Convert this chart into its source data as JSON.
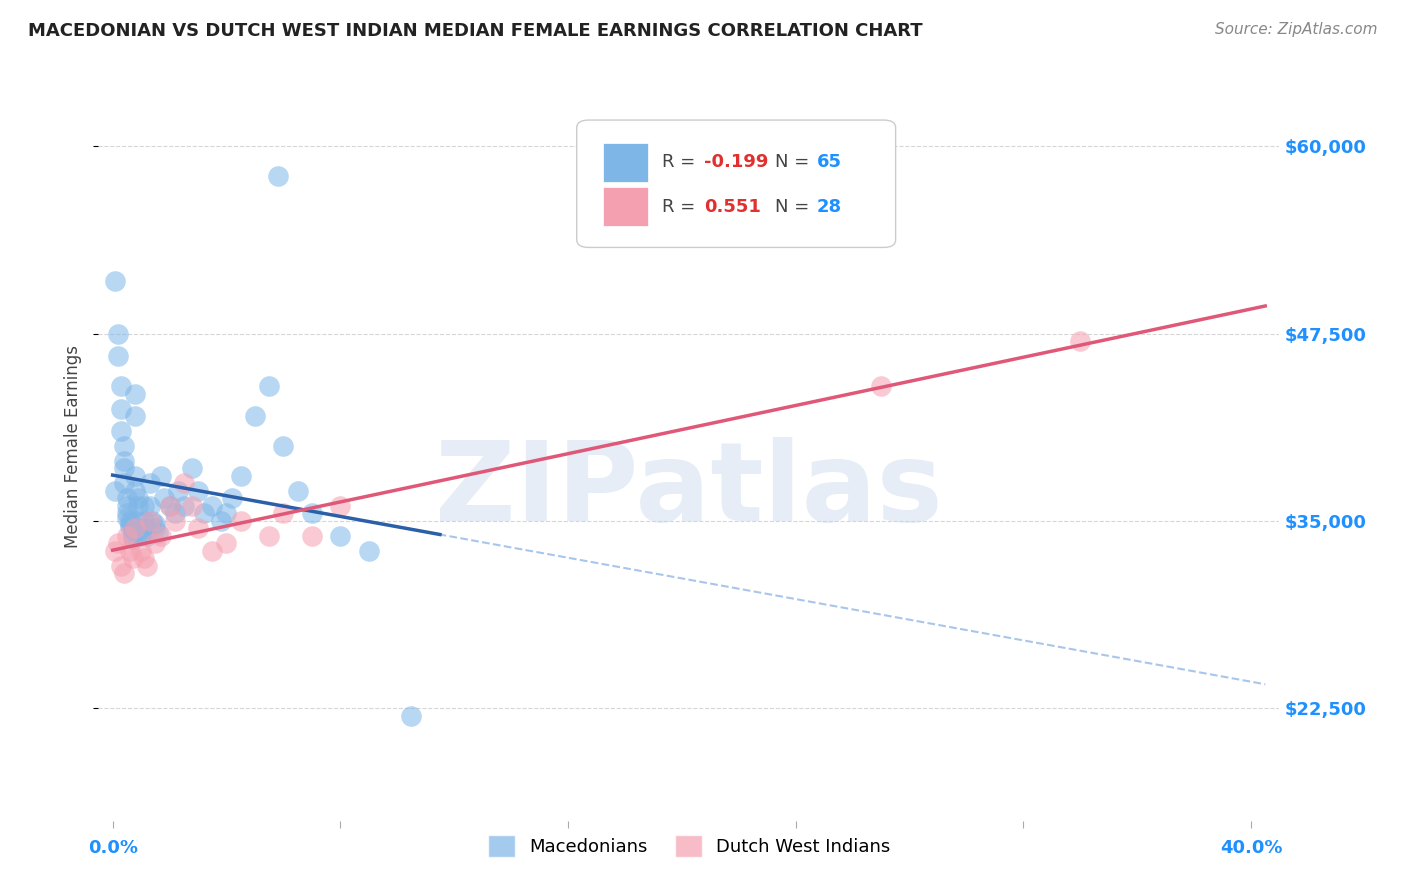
{
  "title": "MACEDONIAN VS DUTCH WEST INDIAN MEDIAN FEMALE EARNINGS CORRELATION CHART",
  "source": "Source: ZipAtlas.com",
  "ylabel": "Median Female Earnings",
  "xlim": [
    -0.005,
    0.41
  ],
  "ylim": [
    15000,
    65000
  ],
  "yticks": [
    22500,
    35000,
    47500,
    60000
  ],
  "ytick_labels": [
    "$22,500",
    "$35,000",
    "$47,500",
    "$60,000"
  ],
  "macedonian_color": "#7EB6E8",
  "dutch_color": "#F5A0B0",
  "macedonian_R": -0.199,
  "macedonian_N": 65,
  "dutch_R": 0.551,
  "dutch_N": 28,
  "background_color": "#FFFFFF",
  "grid_color": "#CCCCCC",
  "watermark": "ZIPatlas",
  "macedonian_x": [
    0.001,
    0.001,
    0.002,
    0.002,
    0.003,
    0.003,
    0.003,
    0.004,
    0.004,
    0.004,
    0.004,
    0.005,
    0.005,
    0.005,
    0.005,
    0.006,
    0.006,
    0.006,
    0.007,
    0.007,
    0.007,
    0.007,
    0.008,
    0.008,
    0.008,
    0.008,
    0.009,
    0.009,
    0.009,
    0.01,
    0.01,
    0.01,
    0.011,
    0.011,
    0.012,
    0.012,
    0.013,
    0.013,
    0.014,
    0.015,
    0.015,
    0.016,
    0.017,
    0.018,
    0.02,
    0.022,
    0.023,
    0.025,
    0.028,
    0.03,
    0.032,
    0.035,
    0.038,
    0.04,
    0.042,
    0.045,
    0.05,
    0.055,
    0.058,
    0.06,
    0.065,
    0.07,
    0.08,
    0.09,
    0.105
  ],
  "macedonian_y": [
    37000,
    51000,
    47500,
    46000,
    44000,
    42500,
    41000,
    40000,
    39000,
    38500,
    37500,
    36500,
    36000,
    35500,
    35200,
    35000,
    34800,
    34600,
    34400,
    34200,
    34000,
    33800,
    43500,
    42000,
    38000,
    37000,
    36500,
    36000,
    35000,
    34500,
    34200,
    34000,
    36000,
    35000,
    34500,
    34000,
    37500,
    36000,
    35000,
    34800,
    34500,
    34200,
    38000,
    36500,
    36000,
    35500,
    37000,
    36000,
    38500,
    37000,
    35500,
    36000,
    35000,
    35500,
    36500,
    38000,
    42000,
    44000,
    58000,
    40000,
    37000,
    35500,
    34000,
    33000,
    22000
  ],
  "dutch_x": [
    0.001,
    0.002,
    0.003,
    0.004,
    0.005,
    0.006,
    0.007,
    0.008,
    0.01,
    0.011,
    0.012,
    0.013,
    0.015,
    0.017,
    0.02,
    0.022,
    0.025,
    0.028,
    0.03,
    0.035,
    0.04,
    0.045,
    0.055,
    0.06,
    0.07,
    0.08,
    0.27,
    0.34
  ],
  "dutch_y": [
    33000,
    33500,
    32000,
    31500,
    34000,
    33000,
    32500,
    34500,
    33000,
    32500,
    32000,
    35000,
    33500,
    34000,
    36000,
    35000,
    37500,
    36000,
    34500,
    33000,
    33500,
    35000,
    34000,
    35500,
    34000,
    36000,
    44000,
    47000
  ]
}
